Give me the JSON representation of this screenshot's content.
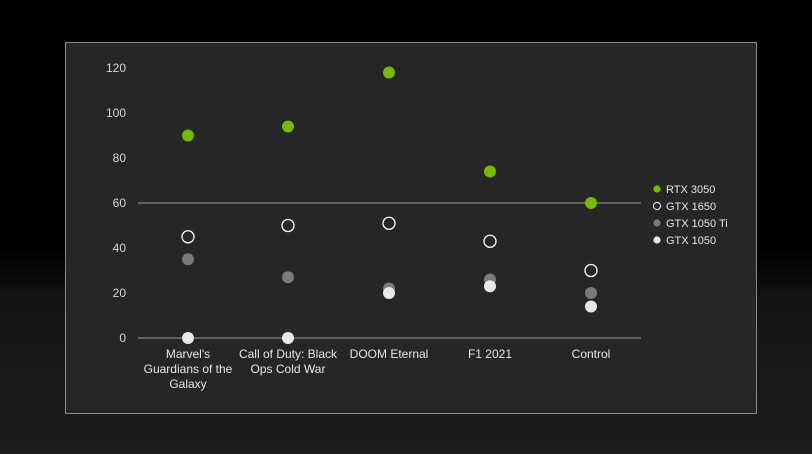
{
  "chart_data": {
    "type": "scatter",
    "categories": [
      "Marvel's Guardians of the Galaxy",
      "Call of Duty: Black Ops Cold War",
      "DOOM Eternal",
      "F1 2021",
      "Control"
    ],
    "category_lines": [
      [
        "Marvel's",
        "Guardians of the",
        "Galaxy"
      ],
      [
        "Call of Duty: Black",
        "Ops Cold War"
      ],
      [
        "DOOM Eternal"
      ],
      [
        "F1 2021"
      ],
      [
        "Control"
      ]
    ],
    "yticks": [
      "0",
      "20",
      "40",
      "60",
      "80",
      "100",
      "120"
    ],
    "ylim": [
      0,
      120
    ],
    "reference_line": 60,
    "legend_position": "right",
    "series": [
      {
        "name": "RTX 3050",
        "color": "#76b900",
        "style": "filled",
        "values": [
          90,
          94,
          118,
          74,
          60
        ]
      },
      {
        "name": "GTX 1650",
        "color": "#ffffff",
        "style": "hollow",
        "values": [
          45,
          50,
          51,
          43,
          30
        ]
      },
      {
        "name": "GTX 1050 Ti",
        "color": "#7a7a7a",
        "style": "filled",
        "values": [
          35,
          27,
          22,
          26,
          20
        ]
      },
      {
        "name": "GTX 1050",
        "color": "#e8e8e8",
        "style": "filled",
        "values": [
          0,
          0,
          20,
          23,
          14
        ]
      }
    ]
  }
}
